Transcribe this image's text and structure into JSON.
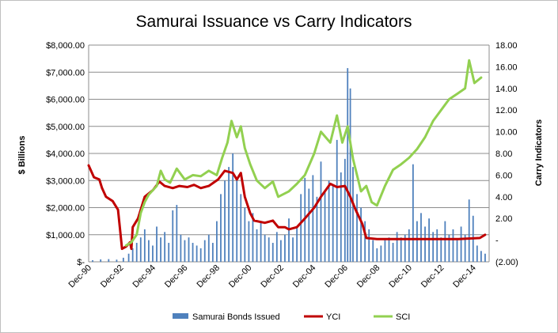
{
  "chart_data": {
    "type": "bar+line",
    "title": "Samurai Issuance vs Carry Indicators",
    "ylabel_left": "$ Billions",
    "ylabel_right": "Carry Indicators",
    "left_axis": {
      "min": 0,
      "max": 8000,
      "step": 1000,
      "tick_labels": [
        "$-",
        "$1,000.00",
        "$2,000.00",
        "$3,000.00",
        "$4,000.00",
        "$5,000.00",
        "$6,000.00",
        "$7,000.00",
        "$8,000.00"
      ]
    },
    "right_axis": {
      "min": -2,
      "max": 18,
      "step": 2,
      "tick_labels": [
        "(2.00)",
        "-",
        "2.00",
        "4.00",
        "6.00",
        "8.00",
        "10.00",
        "12.00",
        "14.00",
        "16.00",
        "18.00"
      ]
    },
    "x_range": [
      "1990-12",
      "2015-12"
    ],
    "x_tick_labels": [
      "Dec-90",
      "Dec-92",
      "Dec-94",
      "Dec-96",
      "Dec-98",
      "Dec-00",
      "Dec-02",
      "Dec-04",
      "Dec-06",
      "Dec-08",
      "Dec-10",
      "Dec-12",
      "Dec-14"
    ],
    "grid": "horizontal",
    "legend": "bottom",
    "series": [
      {
        "name": "Samurai Bonds Issued",
        "type": "bar",
        "axis": "left",
        "color": "#4f81bd",
        "points": [
          [
            "1991-03",
            60
          ],
          [
            "1991-09",
            90
          ],
          [
            "1992-03",
            100
          ],
          [
            "1992-09",
            80
          ],
          [
            "1993-02",
            150
          ],
          [
            "1993-06",
            300
          ],
          [
            "1993-09",
            500
          ],
          [
            "1993-12",
            700
          ],
          [
            "1994-03",
            900
          ],
          [
            "1994-06",
            1200
          ],
          [
            "1994-09",
            800
          ],
          [
            "1994-12",
            600
          ],
          [
            "1995-03",
            1300
          ],
          [
            "1995-06",
            900
          ],
          [
            "1995-09",
            1100
          ],
          [
            "1995-12",
            700
          ],
          [
            "1996-03",
            1900
          ],
          [
            "1996-06",
            2100
          ],
          [
            "1996-09",
            1000
          ],
          [
            "1996-12",
            800
          ],
          [
            "1997-03",
            900
          ],
          [
            "1997-06",
            700
          ],
          [
            "1997-09",
            600
          ],
          [
            "1997-12",
            500
          ],
          [
            "1998-03",
            800
          ],
          [
            "1998-06",
            1000
          ],
          [
            "1998-09",
            700
          ],
          [
            "1998-12",
            1500
          ],
          [
            "1999-03",
            2500
          ],
          [
            "1999-06",
            3000
          ],
          [
            "1999-09",
            3500
          ],
          [
            "1999-12",
            4000
          ],
          [
            "2000-03",
            3000
          ],
          [
            "2000-06",
            2500
          ],
          [
            "2000-09",
            2000
          ],
          [
            "2000-12",
            1500
          ],
          [
            "2001-03",
            1800
          ],
          [
            "2001-06",
            1200
          ],
          [
            "2001-09",
            1500
          ],
          [
            "2001-12",
            1000
          ],
          [
            "2002-03",
            900
          ],
          [
            "2002-06",
            700
          ],
          [
            "2002-09",
            1100
          ],
          [
            "2002-12",
            800
          ],
          [
            "2003-03",
            1000
          ],
          [
            "2003-06",
            1600
          ],
          [
            "2003-09",
            900
          ],
          [
            "2003-12",
            1300
          ],
          [
            "2004-03",
            2500
          ],
          [
            "2004-06",
            3100
          ],
          [
            "2004-09",
            2700
          ],
          [
            "2004-12",
            3200
          ],
          [
            "2005-03",
            2400
          ],
          [
            "2005-06",
            3700
          ],
          [
            "2005-09",
            2600
          ],
          [
            "2005-12",
            3000
          ],
          [
            "2006-03",
            2800
          ],
          [
            "2006-06",
            4500
          ],
          [
            "2006-09",
            3300
          ],
          [
            "2006-12",
            3800
          ],
          [
            "2007-02",
            7150
          ],
          [
            "2007-04",
            6400
          ],
          [
            "2007-06",
            3500
          ],
          [
            "2007-09",
            2500
          ],
          [
            "2007-12",
            2000
          ],
          [
            "2008-03",
            1500
          ],
          [
            "2008-06",
            1200
          ],
          [
            "2008-09",
            800
          ],
          [
            "2008-12",
            500
          ],
          [
            "2009-03",
            600
          ],
          [
            "2009-06",
            800
          ],
          [
            "2009-09",
            900
          ],
          [
            "2009-12",
            700
          ],
          [
            "2010-03",
            1100
          ],
          [
            "2010-06",
            900
          ],
          [
            "2010-09",
            1000
          ],
          [
            "2010-12",
            1200
          ],
          [
            "2011-03",
            3600
          ],
          [
            "2011-06",
            1500
          ],
          [
            "2011-09",
            1800
          ],
          [
            "2011-12",
            1300
          ],
          [
            "2012-03",
            1600
          ],
          [
            "2012-06",
            1100
          ],
          [
            "2012-09",
            1200
          ],
          [
            "2012-12",
            900
          ],
          [
            "2013-03",
            1500
          ],
          [
            "2013-06",
            1000
          ],
          [
            "2013-09",
            1200
          ],
          [
            "2013-12",
            800
          ],
          [
            "2014-03",
            1300
          ],
          [
            "2014-06",
            1000
          ],
          [
            "2014-09",
            2300
          ],
          [
            "2014-12",
            1700
          ],
          [
            "2015-03",
            600
          ],
          [
            "2015-06",
            400
          ],
          [
            "2015-09",
            300
          ]
        ]
      },
      {
        "name": "YCI",
        "type": "line",
        "axis": "right",
        "color": "#c00000",
        "points": [
          [
            "1990-12",
            6.9
          ],
          [
            "1991-04",
            5.8
          ],
          [
            "1991-08",
            5.6
          ],
          [
            "1991-10",
            4.8
          ],
          [
            "1992-01",
            4.0
          ],
          [
            "1992-06",
            3.6
          ],
          [
            "1992-10",
            2.8
          ],
          [
            "1993-01",
            -0.8
          ],
          [
            "1993-04",
            -0.6
          ],
          [
            "1993-07",
            -0.2
          ],
          [
            "1993-08",
            -0.8
          ],
          [
            "1993-09",
            1.2
          ],
          [
            "1994-01",
            2.0
          ],
          [
            "1994-06",
            4.0
          ],
          [
            "1994-12",
            4.6
          ],
          [
            "1995-05",
            5.4
          ],
          [
            "1995-09",
            5.0
          ],
          [
            "1996-03",
            4.8
          ],
          [
            "1996-08",
            5.0
          ],
          [
            "1997-02",
            4.9
          ],
          [
            "1997-07",
            5.1
          ],
          [
            "1997-12",
            4.8
          ],
          [
            "1998-06",
            5.0
          ],
          [
            "1999-01",
            5.6
          ],
          [
            "1999-06",
            6.4
          ],
          [
            "1999-12",
            6.2
          ],
          [
            "2000-03",
            5.6
          ],
          [
            "2000-06",
            6.2
          ],
          [
            "2000-09",
            4.0
          ],
          [
            "2001-01",
            2.5
          ],
          [
            "2001-04",
            1.8
          ],
          [
            "2001-12",
            1.6
          ],
          [
            "2002-06",
            1.8
          ],
          [
            "2002-10",
            1.2
          ],
          [
            "2003-03",
            1.2
          ],
          [
            "2003-06",
            1.0
          ],
          [
            "2003-12",
            1.2
          ],
          [
            "2004-06",
            2.0
          ],
          [
            "2005-01",
            3.0
          ],
          [
            "2005-06",
            4.0
          ],
          [
            "2006-01",
            5.2
          ],
          [
            "2006-06",
            4.9
          ],
          [
            "2006-12",
            5.0
          ],
          [
            "2007-04",
            4.0
          ],
          [
            "2007-08",
            2.8
          ],
          [
            "2008-01",
            1.5
          ],
          [
            "2008-04",
            0.2
          ],
          [
            "2008-12",
            0.1
          ],
          [
            "2010-01",
            0.1
          ],
          [
            "2012-01",
            0.1
          ],
          [
            "2014-01",
            0.1
          ],
          [
            "2015-05",
            0.2
          ],
          [
            "2015-09",
            0.5
          ]
        ]
      },
      {
        "name": "SCI",
        "type": "line",
        "axis": "right",
        "color": "#92d050",
        "points": [
          [
            "1993-04",
            -0.5
          ],
          [
            "1993-08",
            -0.2
          ],
          [
            "1993-12",
            0.5
          ],
          [
            "1994-03",
            2.5
          ],
          [
            "1994-06",
            3.5
          ],
          [
            "1994-09",
            4.2
          ],
          [
            "1995-03",
            5.0
          ],
          [
            "1995-06",
            6.4
          ],
          [
            "1995-09",
            5.6
          ],
          [
            "1996-01",
            5.3
          ],
          [
            "1996-06",
            6.6
          ],
          [
            "1996-12",
            5.6
          ],
          [
            "1997-06",
            6.0
          ],
          [
            "1997-12",
            5.9
          ],
          [
            "1998-06",
            6.4
          ],
          [
            "1998-12",
            6.0
          ],
          [
            "1999-04",
            7.6
          ],
          [
            "1999-08",
            9.0
          ],
          [
            "1999-11",
            11.0
          ],
          [
            "2000-03",
            9.5
          ],
          [
            "2000-06",
            10.5
          ],
          [
            "2000-09",
            8.5
          ],
          [
            "2001-01",
            7.0
          ],
          [
            "2001-06",
            5.5
          ],
          [
            "2001-12",
            4.8
          ],
          [
            "2002-06",
            5.4
          ],
          [
            "2002-10",
            4.0
          ],
          [
            "2003-06",
            4.5
          ],
          [
            "2003-12",
            5.2
          ],
          [
            "2004-06",
            6.0
          ],
          [
            "2005-01",
            8.0
          ],
          [
            "2005-06",
            10.0
          ],
          [
            "2006-01",
            9.0
          ],
          [
            "2006-06",
            11.5
          ],
          [
            "2006-10",
            9.0
          ],
          [
            "2007-02",
            10.5
          ],
          [
            "2007-06",
            7.5
          ],
          [
            "2007-12",
            4.5
          ],
          [
            "2008-04",
            5.0
          ],
          [
            "2008-08",
            3.5
          ],
          [
            "2008-12",
            3.2
          ],
          [
            "2009-06",
            5.0
          ],
          [
            "2009-12",
            6.5
          ],
          [
            "2010-06",
            7.0
          ],
          [
            "2010-12",
            7.6
          ],
          [
            "2011-06",
            8.4
          ],
          [
            "2011-12",
            9.5
          ],
          [
            "2012-06",
            11.0
          ],
          [
            "2012-12",
            12.0
          ],
          [
            "2013-06",
            13.0
          ],
          [
            "2013-12",
            13.5
          ],
          [
            "2014-06",
            14.0
          ],
          [
            "2014-09",
            16.6
          ],
          [
            "2015-01",
            14.5
          ],
          [
            "2015-06",
            15.0
          ]
        ]
      }
    ]
  }
}
